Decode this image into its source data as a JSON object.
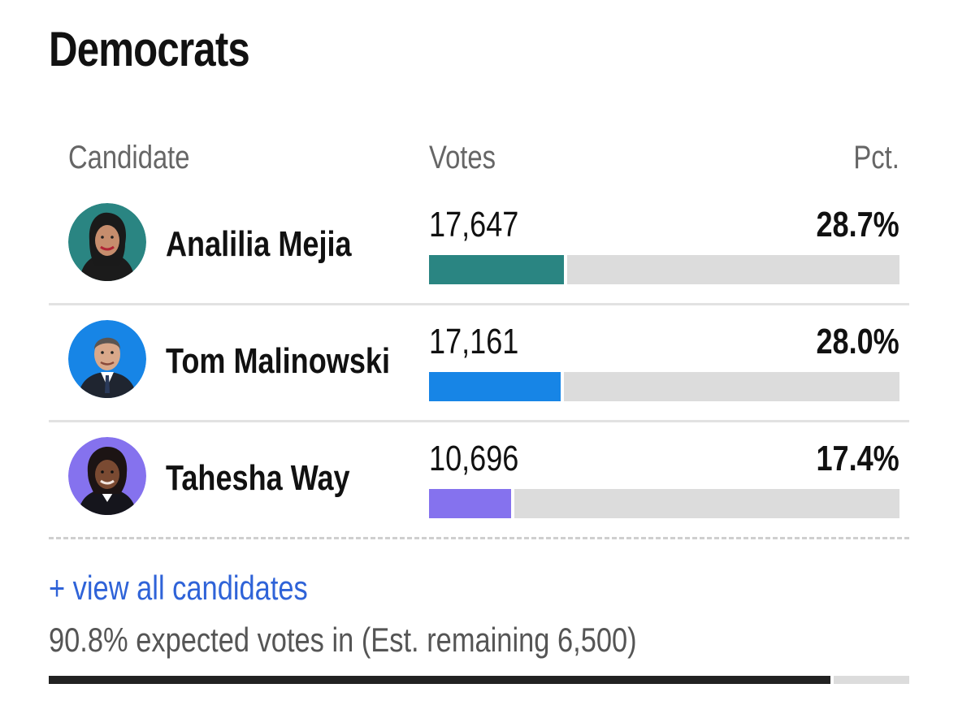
{
  "section": {
    "title": "Democrats"
  },
  "columns": {
    "candidate": "Candidate",
    "votes": "Votes",
    "pct": "Pct."
  },
  "candidates": [
    {
      "name": "Analilia Mejia",
      "votes": "17,647",
      "pct": "28.7%",
      "pct_value": 28.7,
      "color": "#2a8582",
      "avatar_bg": "#2a8582"
    },
    {
      "name": "Tom Malinowski",
      "votes": "17,161",
      "pct": "28.0%",
      "pct_value": 28.0,
      "color": "#1785e6",
      "avatar_bg": "#1785e6"
    },
    {
      "name": "Tahesha Way",
      "votes": "10,696",
      "pct": "17.4%",
      "pct_value": 17.4,
      "color": "#8572ee",
      "avatar_bg": "#8572ee"
    }
  ],
  "footer": {
    "view_all": "+ view all candidates",
    "expected": "90.8% expected votes in (Est. remaining 6,500)",
    "expected_pct": 90.8
  }
}
